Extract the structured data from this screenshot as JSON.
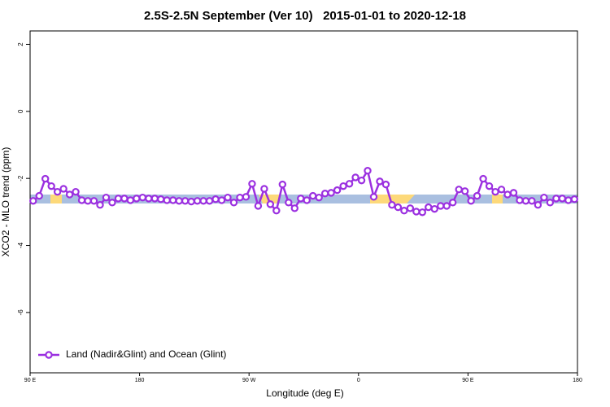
{
  "chart_data": {
    "type": "line",
    "title": "2.5S-2.5N September (Ver 10)   2015-01-01 to 2020-12-18",
    "x_label": "Longitude (deg E)",
    "y_label": "XCO2 - MLO trend (ppm)",
    "xlim": [
      90,
      540
    ],
    "xticks": [
      {
        "value": 90,
        "label": "90 E"
      },
      {
        "value": 180,
        "label": "180"
      },
      {
        "value": 270,
        "label": "90 W"
      },
      {
        "value": 360,
        "label": "0"
      },
      {
        "value": 450,
        "label": "90 E"
      },
      {
        "value": 540,
        "label": "180"
      }
    ],
    "ylim": [
      -7.8,
      2.4
    ],
    "yticks": [
      2,
      0,
      -2,
      -4,
      -6
    ],
    "legend": "bottom-left",
    "x": [
      92.5,
      97.5,
      102.5,
      107.5,
      112.5,
      117.5,
      122.5,
      127.5,
      132.5,
      137.5,
      142.5,
      147.5,
      152.5,
      157.5,
      162.5,
      167.5,
      172.5,
      177.5,
      182.5,
      187.5,
      192.5,
      197.5,
      202.5,
      207.5,
      212.5,
      217.5,
      222.5,
      227.5,
      232.5,
      237.5,
      242.5,
      247.5,
      252.5,
      257.5,
      262.5,
      267.5,
      272.5,
      277.5,
      282.5,
      287.5,
      292.5,
      297.5,
      302.5,
      307.5,
      312.5,
      317.5,
      322.5,
      327.5,
      332.5,
      337.5,
      342.5,
      347.5,
      352.5,
      357.5,
      362.5,
      367.5,
      372.5,
      377.5,
      382.5,
      387.5,
      392.5,
      397.5,
      402.5,
      407.5,
      412.5,
      417.5,
      422.5,
      427.5,
      432.5,
      437.5,
      442.5,
      447.5,
      452.5,
      457.5,
      462.5,
      467.5,
      472.5,
      477.5,
      482.5,
      487.5,
      492.5,
      497.5,
      502.5,
      507.5,
      512.5,
      517.5,
      522.5,
      527.5,
      532.5,
      537.5
    ],
    "series": [
      {
        "name": "Land (Nadir&Glint) and Ocean (Glint)",
        "color": "#9b30e0",
        "values": [
          -2.67,
          -2.52,
          -2.01,
          -2.23,
          -2.4,
          -2.31,
          -2.48,
          -2.4,
          -2.65,
          -2.67,
          -2.67,
          -2.79,
          -2.57,
          -2.72,
          -2.6,
          -2.6,
          -2.65,
          -2.6,
          -2.57,
          -2.6,
          -2.6,
          -2.62,
          -2.65,
          -2.65,
          -2.67,
          -2.67,
          -2.69,
          -2.67,
          -2.67,
          -2.67,
          -2.62,
          -2.65,
          -2.57,
          -2.72,
          -2.57,
          -2.55,
          -2.16,
          -2.82,
          -2.31,
          -2.77,
          -2.96,
          -2.18,
          -2.72,
          -2.89,
          -2.6,
          -2.65,
          -2.52,
          -2.57,
          -2.45,
          -2.43,
          -2.35,
          -2.23,
          -2.16,
          -1.97,
          -2.06,
          -1.77,
          -2.55,
          -2.09,
          -2.18,
          -2.79,
          -2.86,
          -2.96,
          -2.89,
          -2.99,
          -3.01,
          -2.86,
          -2.91,
          -2.82,
          -2.82,
          -2.72,
          -2.33,
          -2.38,
          -2.67,
          -2.52,
          -2.01,
          -2.23,
          -2.4,
          -2.33,
          -2.48,
          -2.43,
          -2.65,
          -2.67,
          -2.67,
          -2.79,
          -2.57,
          -2.72,
          -2.6,
          -2.6,
          -2.65,
          -2.62
        ]
      }
    ]
  }
}
